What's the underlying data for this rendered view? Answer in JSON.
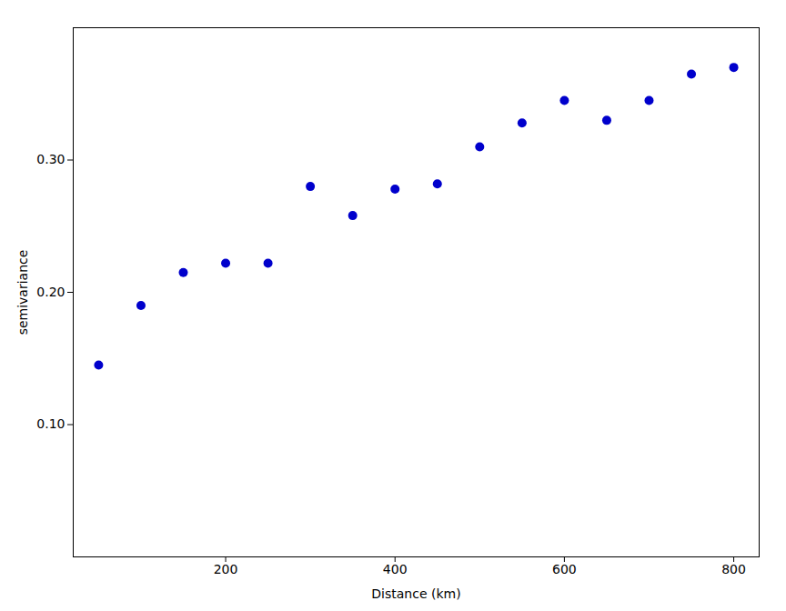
{
  "chart_data": {
    "type": "scatter",
    "x": [
      50,
      100,
      150,
      200,
      250,
      300,
      350,
      400,
      450,
      500,
      550,
      600,
      650,
      700,
      750,
      800
    ],
    "values": [
      0.145,
      0.19,
      0.215,
      0.222,
      0.222,
      0.28,
      0.258,
      0.278,
      0.282,
      0.31,
      0.328,
      0.345,
      0.33,
      0.345,
      0.365,
      0.37
    ],
    "color": "#0000CC",
    "marker": "circle",
    "xlabel": "Distance (km)",
    "ylabel": "semivariance",
    "xlim": [
      20,
      830
    ],
    "ylim": [
      0,
      0.4
    ],
    "xticks": [
      200,
      400,
      600,
      800
    ],
    "yticks": [
      0.1,
      0.2,
      0.3
    ]
  }
}
